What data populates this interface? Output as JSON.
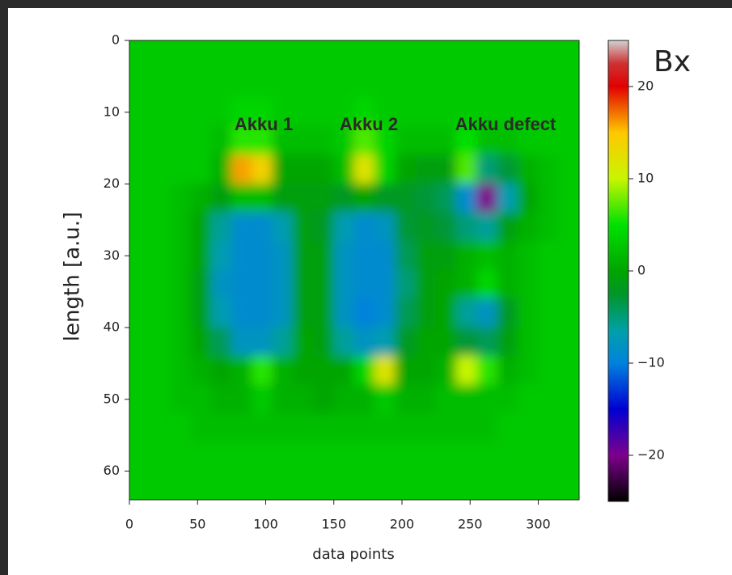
{
  "chart_data": {
    "type": "heatmap",
    "xlabel": "data points",
    "ylabel": "length [a.u.]",
    "xlim": [
      0,
      330
    ],
    "ylim": [
      0,
      64
    ],
    "xticks": [
      0,
      50,
      100,
      150,
      200,
      250,
      300
    ],
    "yticks": [
      0,
      10,
      20,
      30,
      40,
      50,
      60
    ],
    "colormap": "nipy_spectral",
    "clim": [
      -25,
      25
    ],
    "cticks": [
      {
        "value": -20,
        "label": "−20"
      },
      {
        "value": -10,
        "label": "−10"
      },
      0,
      10,
      20
    ],
    "colorbar_label": "Bx",
    "annotations": [
      "Akku 1",
      "Akku 2",
      "Akku defect"
    ],
    "z": [
      [
        3,
        3,
        3,
        3,
        3,
        3,
        3,
        3,
        3,
        3,
        3,
        3,
        3,
        3,
        3,
        3,
        3,
        3,
        3,
        3,
        3,
        3
      ],
      [
        3,
        3,
        3,
        3,
        3,
        3,
        3,
        3,
        3,
        3,
        3,
        3,
        3,
        3,
        3,
        3,
        3,
        3,
        3,
        3,
        3,
        3
      ],
      [
        3,
        3,
        3,
        3,
        3,
        4,
        4,
        3,
        3,
        3,
        3,
        4,
        3,
        3,
        3,
        3,
        3,
        3,
        3,
        3,
        3,
        3
      ],
      [
        3,
        3,
        3,
        3,
        2,
        6,
        6,
        2,
        2,
        2,
        3,
        7,
        4,
        2,
        2,
        2,
        5,
        2,
        2,
        3,
        3,
        3
      ],
      [
        3,
        3,
        3,
        3,
        1,
        16,
        14,
        0,
        0,
        0,
        2,
        12,
        4,
        0,
        -1,
        -1,
        7,
        -5,
        -3,
        1,
        2,
        3
      ],
      [
        3,
        3,
        2,
        1,
        -1,
        2,
        2,
        -1,
        -1,
        -1,
        -2,
        0,
        -2,
        -2,
        -3,
        -4,
        -9,
        -20,
        -7,
        0,
        2,
        3
      ],
      [
        3,
        3,
        2,
        0,
        -6,
        -9,
        -9,
        -7,
        -1,
        -2,
        -7,
        -9,
        -8,
        -3,
        -2,
        -3,
        -5,
        -6,
        -1,
        1,
        2,
        3
      ],
      [
        3,
        3,
        2,
        0,
        -7,
        -9,
        -9,
        -8,
        -1,
        -1,
        -8,
        -9,
        -9,
        -4,
        -1,
        -1,
        1,
        2,
        1,
        2,
        3,
        3
      ],
      [
        3,
        3,
        2,
        -1,
        -8,
        -9,
        -9,
        -8,
        -1,
        -1,
        -8,
        -9,
        -9,
        -5,
        -1,
        0,
        1,
        4,
        1,
        2,
        3,
        3
      ],
      [
        3,
        3,
        2,
        -1,
        -7,
        -9,
        -9,
        -8,
        -1,
        -1,
        -8,
        -10,
        -9,
        -4,
        -1,
        0,
        -6,
        -8,
        -2,
        2,
        3,
        3
      ],
      [
        3,
        3,
        2,
        0,
        -4,
        -8,
        -8,
        -6,
        0,
        -1,
        -6,
        -8,
        -7,
        -2,
        0,
        0,
        -3,
        -4,
        -1,
        2,
        3,
        3
      ],
      [
        3,
        3,
        2,
        1,
        0,
        1,
        6,
        1,
        0,
        0,
        0,
        4,
        12,
        0,
        0,
        1,
        10,
        6,
        1,
        2,
        3,
        3
      ],
      [
        3,
        3,
        2,
        2,
        1,
        1,
        3,
        1,
        1,
        0,
        1,
        1,
        3,
        1,
        1,
        2,
        2,
        2,
        2,
        3,
        3,
        3
      ],
      [
        3,
        3,
        3,
        2,
        2,
        2,
        2,
        2,
        2,
        2,
        2,
        2,
        2,
        2,
        2,
        2,
        2,
        2,
        3,
        3,
        3,
        3
      ],
      [
        3,
        3,
        3,
        3,
        3,
        3,
        3,
        3,
        3,
        3,
        3,
        3,
        3,
        3,
        3,
        3,
        3,
        3,
        3,
        3,
        3,
        3
      ],
      [
        3,
        3,
        3,
        3,
        3,
        3,
        3,
        3,
        3,
        3,
        3,
        3,
        3,
        3,
        3,
        3,
        3,
        3,
        3,
        3,
        3,
        3
      ]
    ]
  }
}
